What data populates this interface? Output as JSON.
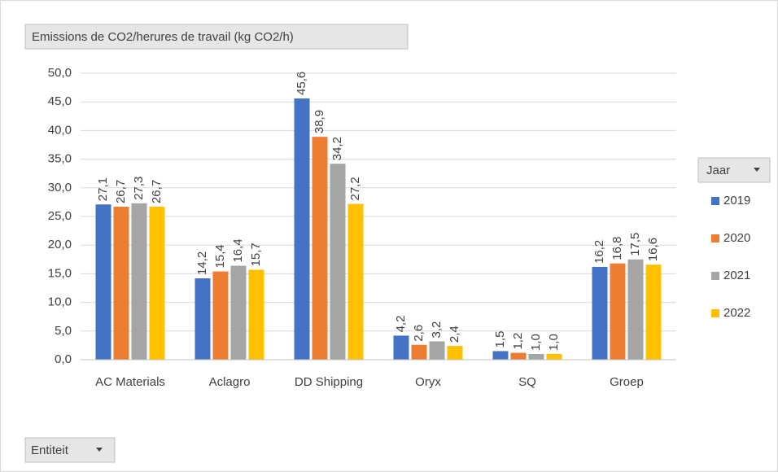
{
  "chart_data": {
    "type": "bar",
    "title": "Emissions de CO2/herures de travail (kg CO2/h)",
    "legend_title": "Jaar",
    "axis_field_label": "Entiteit",
    "categories": [
      "AC Materials",
      "Aclagro",
      "DD Shipping",
      "Oryx",
      "SQ",
      "Groep"
    ],
    "series": [
      {
        "name": "2019",
        "color": "#4472c4",
        "values": [
          27.1,
          14.2,
          45.6,
          4.2,
          1.5,
          16.2
        ],
        "value_labels": [
          "27,1",
          "14,2",
          "45,6",
          "4,2",
          "1,5",
          "16,2"
        ]
      },
      {
        "name": "2020",
        "color": "#ed7d31",
        "values": [
          26.7,
          15.4,
          38.9,
          2.6,
          1.2,
          16.8
        ],
        "value_labels": [
          "26,7",
          "15,4",
          "38,9",
          "2,6",
          "1,2",
          "16,8"
        ]
      },
      {
        "name": "2021",
        "color": "#a5a5a5",
        "values": [
          27.3,
          16.4,
          34.2,
          3.2,
          1.0,
          17.5
        ],
        "value_labels": [
          "27,3",
          "16,4",
          "34,2",
          "3,2",
          "1,0",
          "17,5"
        ]
      },
      {
        "name": "2022",
        "color": "#ffc000",
        "values": [
          26.7,
          15.7,
          27.2,
          2.4,
          1.0,
          16.6
        ],
        "value_labels": [
          "26,7",
          "15,7",
          "27,2",
          "2,4",
          "1,0",
          "16,6"
        ]
      }
    ],
    "ylim": [
      0,
      50
    ],
    "yticks": [
      {
        "value": 0,
        "label": "0,0"
      },
      {
        "value": 5,
        "label": "5,0"
      },
      {
        "value": 10,
        "label": "10,0"
      },
      {
        "value": 15,
        "label": "15,0"
      },
      {
        "value": 20,
        "label": "20,0"
      },
      {
        "value": 25,
        "label": "25,0"
      },
      {
        "value": 30,
        "label": "30,0"
      },
      {
        "value": 35,
        "label": "35,0"
      },
      {
        "value": 40,
        "label": "40,0"
      },
      {
        "value": 45,
        "label": "45,0"
      },
      {
        "value": 50,
        "label": "50,0"
      }
    ],
    "grid": true,
    "legend_position": "right"
  }
}
